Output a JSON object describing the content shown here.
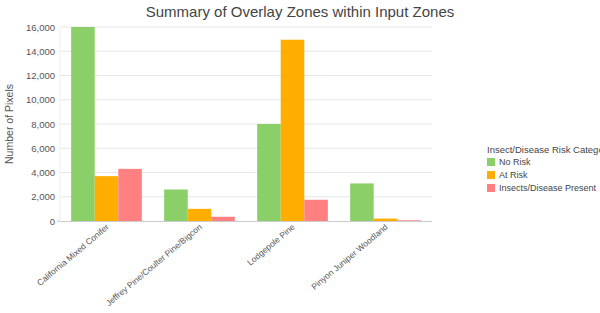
{
  "chart_data": {
    "type": "bar",
    "title": "Summary of Overlay Zones within Input Zones",
    "y_label": "Number of Pixels",
    "legend_title": "Insect/Disease Risk Category",
    "categories": [
      "California Mixed Conifer",
      "Jeffrey Pine/Coulter Pine/Bigcon",
      "Lodgepole Pine",
      "Pinyon Juniper Woodland"
    ],
    "series": [
      {
        "name": "No Risk",
        "color": "#8bcf69",
        "values": [
          16000,
          2600,
          8000,
          3100
        ]
      },
      {
        "name": "At Risk",
        "color": "#ffad00",
        "values": [
          3700,
          1000,
          14950,
          200
        ]
      },
      {
        "name": "Insects/Disease Present",
        "color": "#ff8080",
        "values": [
          4300,
          350,
          1750,
          60
        ]
      }
    ],
    "ylim": [
      0,
      16000
    ],
    "yticks": [
      0,
      {
        "value": 2000,
        "label": "2,000"
      },
      {
        "value": 4000,
        "label": "4,000"
      },
      {
        "value": 6000,
        "label": "6,000"
      },
      {
        "value": 8000,
        "label": "8,000"
      },
      {
        "value": 10000,
        "label": "10,000"
      },
      {
        "value": 12000,
        "label": "12,000"
      },
      {
        "value": 14000,
        "label": "14,000"
      },
      {
        "value": 16000,
        "label": "16,000"
      }
    ],
    "grid": true,
    "legend": "right"
  }
}
